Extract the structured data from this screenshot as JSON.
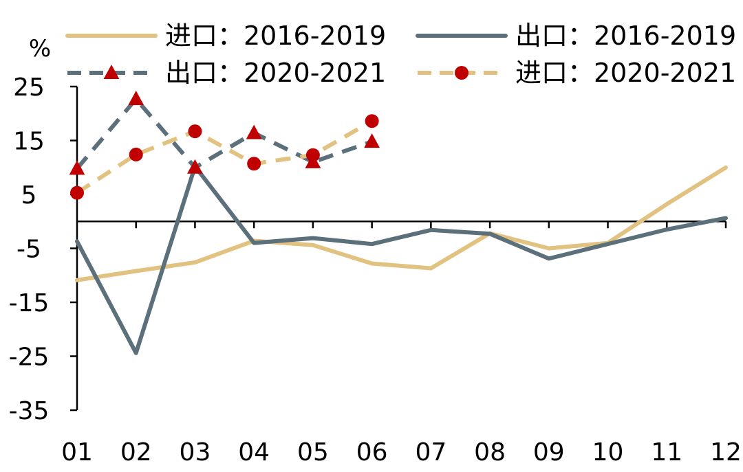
{
  "chart_data": {
    "type": "line",
    "unit": "%",
    "categories": [
      "01",
      "02",
      "03",
      "04",
      "05",
      "06",
      "07",
      "08",
      "09",
      "10",
      "11",
      "12"
    ],
    "y_ticks": [
      25,
      15,
      5,
      -5,
      -15,
      -25,
      -35
    ],
    "ylim": [
      -35,
      25
    ],
    "grid": false,
    "legend_position": "top",
    "series": [
      {
        "name": "进口：2016-2019",
        "color": "#E2C281",
        "dashed": false,
        "marker": "none",
        "values": [
          -10.9,
          -9.2,
          -7.6,
          -3.6,
          -4.4,
          -7.8,
          -8.7,
          -2.2,
          -5.0,
          -4.0,
          3.2,
          10.0
        ]
      },
      {
        "name": "出口：2016-2019",
        "color": "#5C707B",
        "dashed": false,
        "marker": "none",
        "values": [
          -3.7,
          -24.4,
          10.2,
          -4.0,
          -3.1,
          -4.2,
          -1.6,
          -2.3,
          -6.9,
          -4.2,
          -1.5,
          0.6
        ]
      },
      {
        "name": "出口：2020-2021",
        "color": "#5C707B",
        "dashed": true,
        "marker": "triangle",
        "marker_color": "#C00000",
        "values": [
          9.8,
          22.7,
          10.0,
          16.4,
          11.0,
          14.8,
          null,
          null,
          null,
          null,
          null,
          null
        ]
      },
      {
        "name": "进口：2020-2021",
        "color": "#E2C281",
        "dashed": true,
        "marker": "circle",
        "marker_color": "#C00000",
        "values": [
          5.3,
          12.4,
          16.7,
          10.7,
          12.3,
          18.6,
          null,
          null,
          null,
          null,
          null,
          null
        ]
      }
    ]
  }
}
